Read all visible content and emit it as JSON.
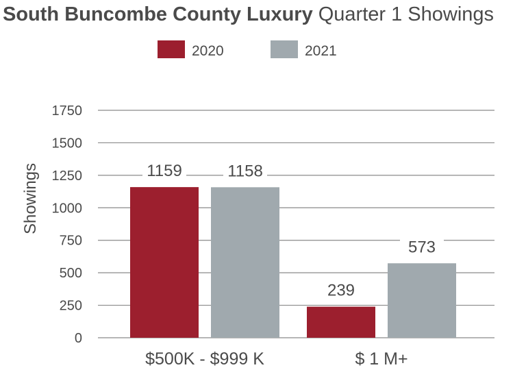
{
  "title": {
    "bold": "South Buncombe County Luxury",
    "regular": "Quarter 1 Showings"
  },
  "colors": {
    "series_2020": "#9c1f2e",
    "series_2021": "#a0a9ae",
    "grid": "#8a8a8a",
    "text": "#4a4a4a"
  },
  "chart_data": {
    "type": "bar",
    "title": "South Buncombe County Luxury Quarter 1 Showings",
    "xlabel": "",
    "ylabel": "Showings",
    "categories": [
      "$500K - $999 K",
      "$ 1 M+"
    ],
    "series": [
      {
        "name": "2020",
        "values": [
          1159,
          239
        ]
      },
      {
        "name": "2021",
        "values": [
          1158,
          573
        ]
      }
    ],
    "ylim": [
      0,
      1750
    ],
    "yticks": [
      "0",
      "250",
      "500",
      "750",
      "1000",
      "1250",
      "1500",
      "1750"
    ],
    "grid": true,
    "legend": "top-center"
  }
}
